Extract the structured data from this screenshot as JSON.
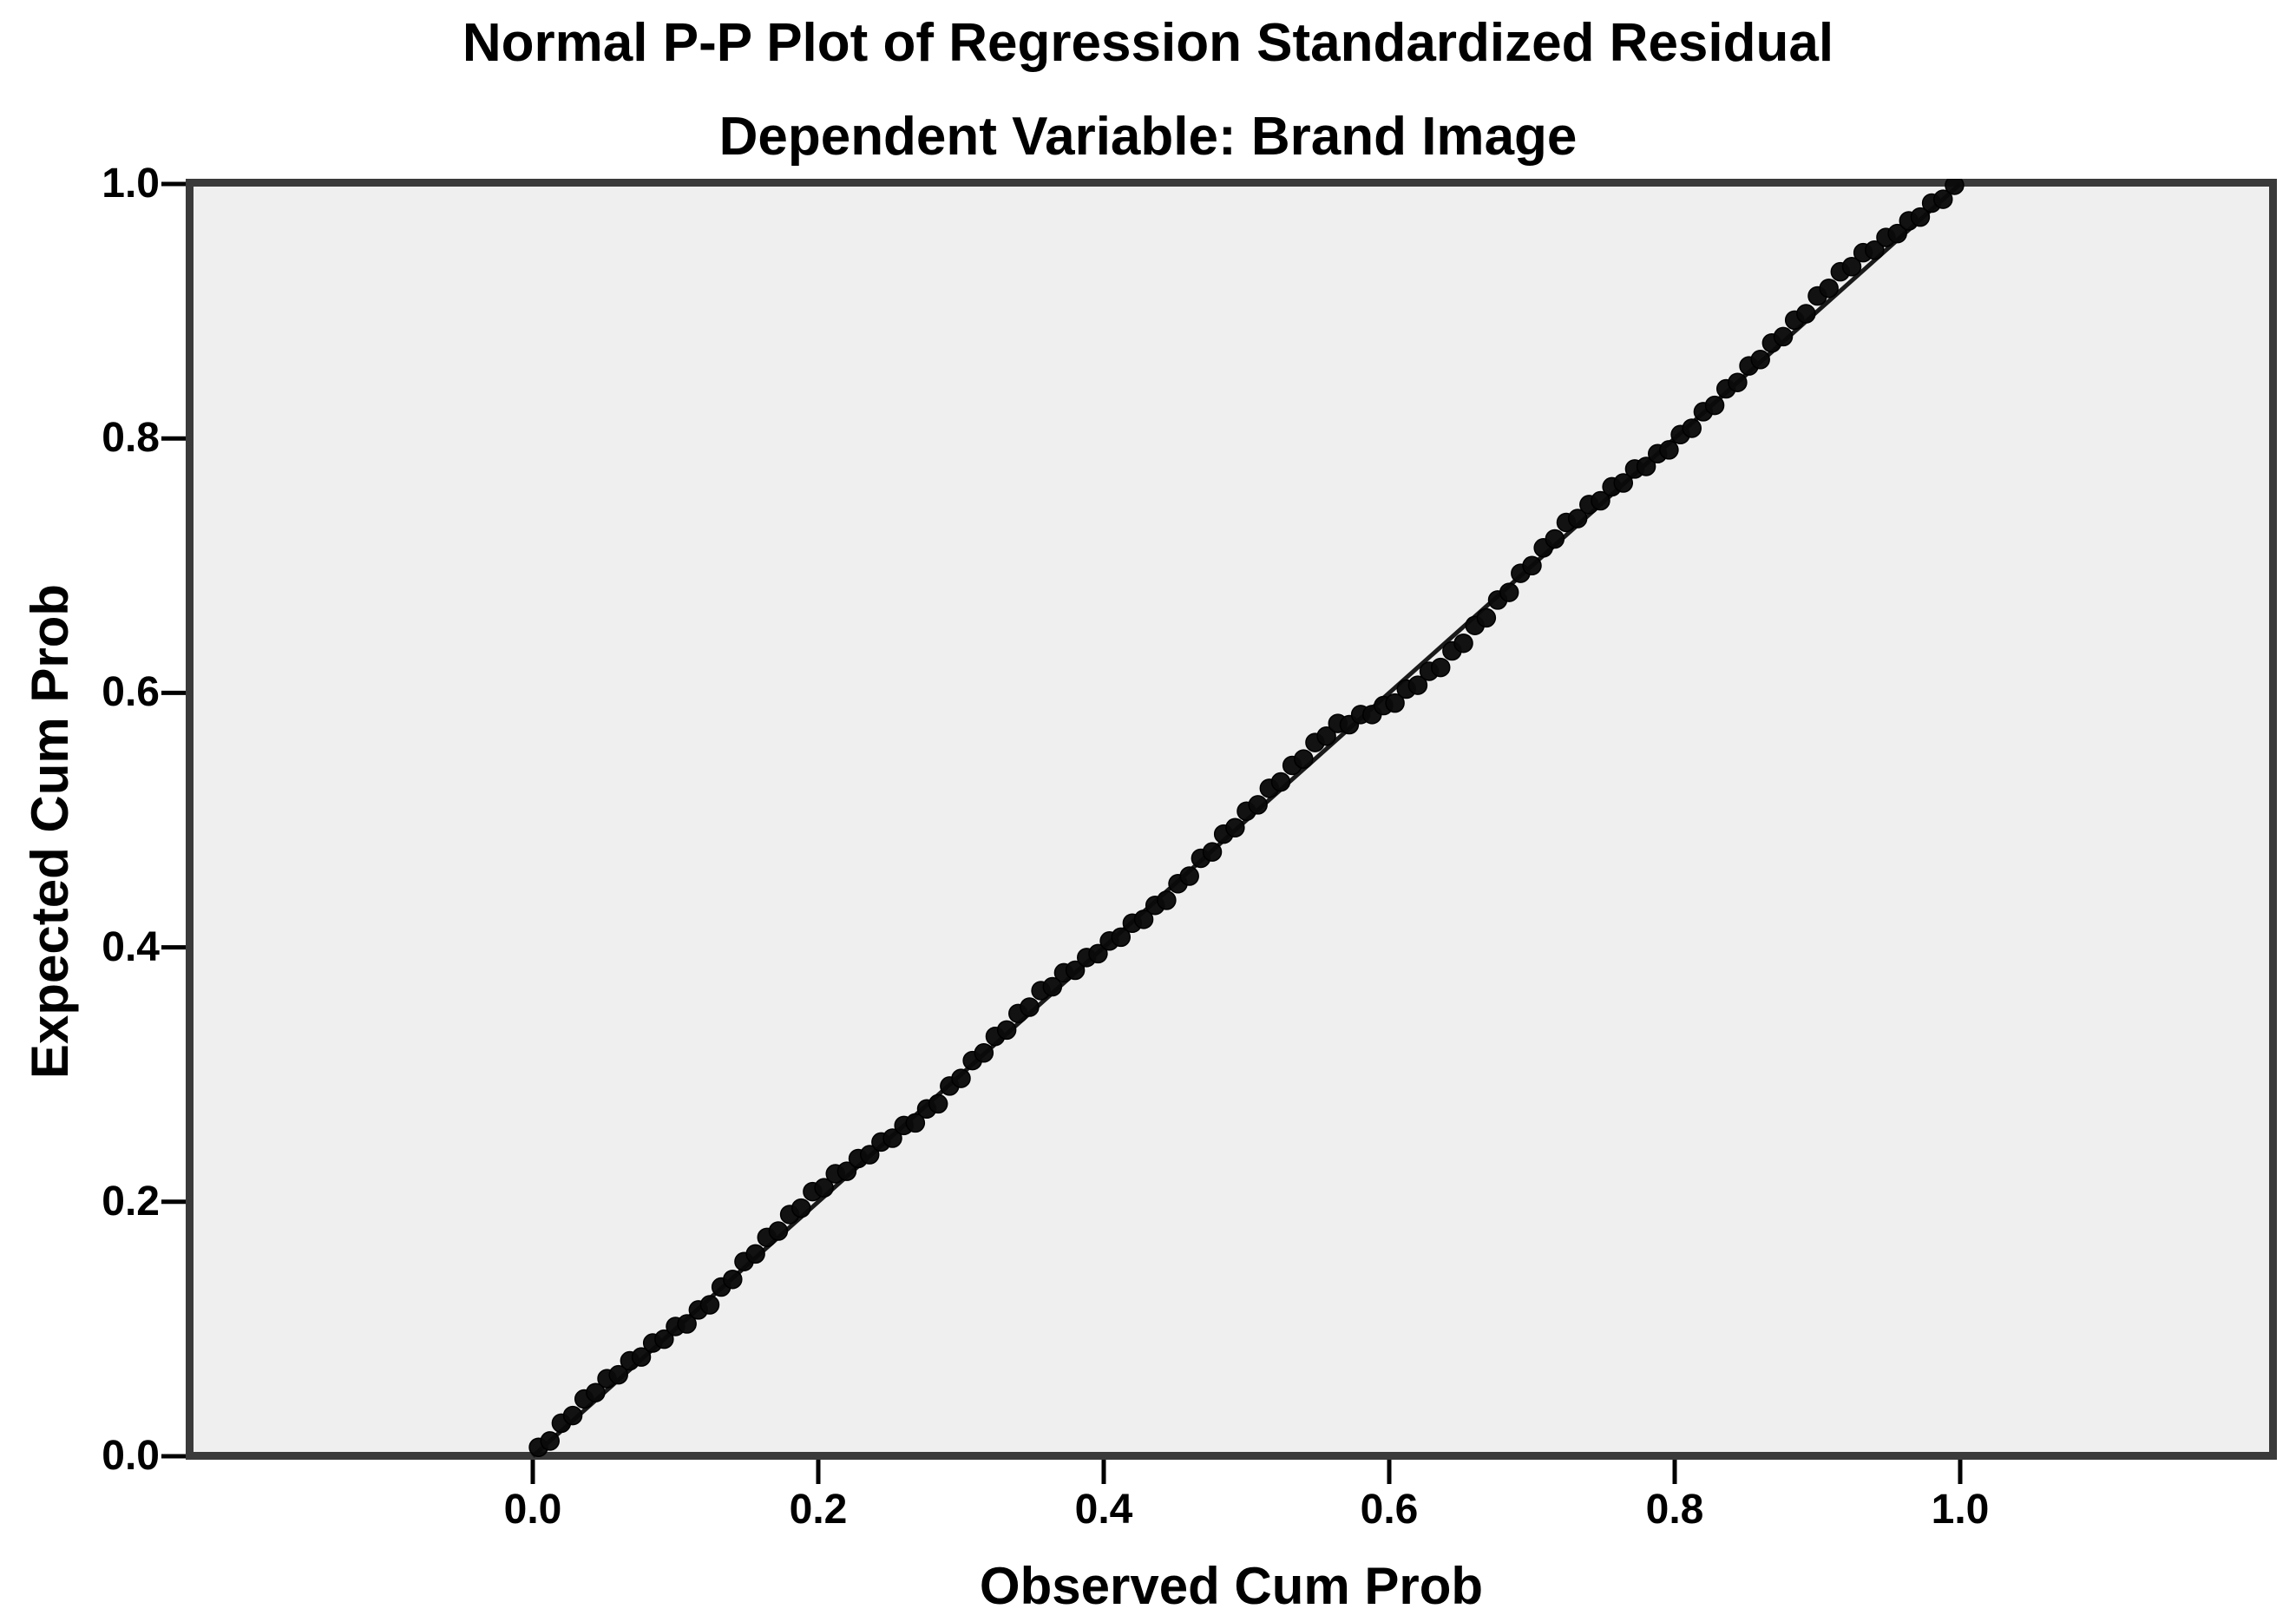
{
  "chart_data": {
    "type": "scatter",
    "title": "Normal P-P Plot of Regression Standardized Residual",
    "subtitle": "Dependent Variable: Brand Image",
    "xlabel": "Observed Cum Prob",
    "ylabel": "Expected Cum Prob",
    "xlim": [
      -0.24,
      1.22
    ],
    "ylim": [
      0.0,
      1.0
    ],
    "grid": false,
    "legend": null,
    "x_ticks": [
      0.0,
      0.2,
      0.4,
      0.6,
      0.8,
      1.0
    ],
    "y_ticks": [
      0.0,
      0.2,
      0.4,
      0.6,
      0.8,
      1.0
    ],
    "x_tick_labels": [
      "0.0",
      "0.2",
      "0.4",
      "0.6",
      "0.8",
      "1.0"
    ],
    "y_tick_labels": [
      "0.0",
      "0.2",
      "0.4",
      "0.6",
      "0.8",
      "1.0"
    ],
    "reference_line": {
      "from": [
        0,
        0
      ],
      "to": [
        1,
        1
      ]
    },
    "colors": {
      "panel_background": "#efefef",
      "frame": "#3a3a3a",
      "marker": "#0a0a0a",
      "reference_line": "#1a1a1a",
      "tick": "#000000",
      "text": "#000000"
    },
    "series_name": "observed_vs_expected_cum_prob",
    "points": [
      [
        0.004,
        0.007
      ],
      [
        0.012,
        0.012
      ],
      [
        0.02,
        0.026
      ],
      [
        0.028,
        0.032
      ],
      [
        0.036,
        0.045
      ],
      [
        0.044,
        0.05
      ],
      [
        0.052,
        0.061
      ],
      [
        0.06,
        0.064
      ],
      [
        0.068,
        0.075
      ],
      [
        0.076,
        0.078
      ],
      [
        0.084,
        0.089
      ],
      [
        0.092,
        0.092
      ],
      [
        0.1,
        0.102
      ],
      [
        0.108,
        0.104
      ],
      [
        0.116,
        0.115
      ],
      [
        0.124,
        0.119
      ],
      [
        0.132,
        0.133
      ],
      [
        0.14,
        0.139
      ],
      [
        0.148,
        0.153
      ],
      [
        0.156,
        0.159
      ],
      [
        0.164,
        0.172
      ],
      [
        0.172,
        0.177
      ],
      [
        0.18,
        0.19
      ],
      [
        0.188,
        0.195
      ],
      [
        0.196,
        0.208
      ],
      [
        0.204,
        0.211
      ],
      [
        0.212,
        0.222
      ],
      [
        0.22,
        0.224
      ],
      [
        0.228,
        0.234
      ],
      [
        0.236,
        0.237
      ],
      [
        0.244,
        0.247
      ],
      [
        0.252,
        0.25
      ],
      [
        0.26,
        0.26
      ],
      [
        0.268,
        0.262
      ],
      [
        0.276,
        0.273
      ],
      [
        0.284,
        0.277
      ],
      [
        0.292,
        0.291
      ],
      [
        0.3,
        0.297
      ],
      [
        0.308,
        0.311
      ],
      [
        0.316,
        0.317
      ],
      [
        0.324,
        0.33
      ],
      [
        0.332,
        0.335
      ],
      [
        0.34,
        0.348
      ],
      [
        0.348,
        0.353
      ],
      [
        0.356,
        0.366
      ],
      [
        0.364,
        0.369
      ],
      [
        0.372,
        0.38
      ],
      [
        0.38,
        0.382
      ],
      [
        0.388,
        0.392
      ],
      [
        0.396,
        0.395
      ],
      [
        0.404,
        0.405
      ],
      [
        0.412,
        0.408
      ],
      [
        0.42,
        0.419
      ],
      [
        0.428,
        0.422
      ],
      [
        0.436,
        0.433
      ],
      [
        0.444,
        0.437
      ],
      [
        0.452,
        0.45
      ],
      [
        0.46,
        0.456
      ],
      [
        0.468,
        0.47
      ],
      [
        0.476,
        0.475
      ],
      [
        0.484,
        0.489
      ],
      [
        0.492,
        0.494
      ],
      [
        0.5,
        0.507
      ],
      [
        0.508,
        0.512
      ],
      [
        0.516,
        0.525
      ],
      [
        0.524,
        0.53
      ],
      [
        0.532,
        0.543
      ],
      [
        0.54,
        0.548
      ],
      [
        0.548,
        0.561
      ],
      [
        0.556,
        0.566
      ],
      [
        0.564,
        0.576
      ],
      [
        0.572,
        0.575
      ],
      [
        0.58,
        0.583
      ],
      [
        0.588,
        0.583
      ],
      [
        0.596,
        0.59
      ],
      [
        0.604,
        0.592
      ],
      [
        0.612,
        0.603
      ],
      [
        0.62,
        0.606
      ],
      [
        0.628,
        0.617
      ],
      [
        0.636,
        0.62
      ],
      [
        0.644,
        0.633
      ],
      [
        0.652,
        0.639
      ],
      [
        0.66,
        0.653
      ],
      [
        0.668,
        0.659
      ],
      [
        0.676,
        0.673
      ],
      [
        0.684,
        0.679
      ],
      [
        0.692,
        0.694
      ],
      [
        0.7,
        0.7
      ],
      [
        0.708,
        0.714
      ],
      [
        0.716,
        0.721
      ],
      [
        0.724,
        0.734
      ],
      [
        0.732,
        0.737
      ],
      [
        0.74,
        0.748
      ],
      [
        0.748,
        0.751
      ],
      [
        0.756,
        0.762
      ],
      [
        0.764,
        0.765
      ],
      [
        0.772,
        0.776
      ],
      [
        0.78,
        0.778
      ],
      [
        0.788,
        0.788
      ],
      [
        0.796,
        0.791
      ],
      [
        0.804,
        0.803
      ],
      [
        0.812,
        0.808
      ],
      [
        0.82,
        0.821
      ],
      [
        0.828,
        0.826
      ],
      [
        0.836,
        0.839
      ],
      [
        0.844,
        0.844
      ],
      [
        0.852,
        0.857
      ],
      [
        0.86,
        0.862
      ],
      [
        0.868,
        0.875
      ],
      [
        0.876,
        0.88
      ],
      [
        0.884,
        0.893
      ],
      [
        0.892,
        0.898
      ],
      [
        0.9,
        0.912
      ],
      [
        0.908,
        0.918
      ],
      [
        0.916,
        0.931
      ],
      [
        0.924,
        0.935
      ],
      [
        0.932,
        0.946
      ],
      [
        0.94,
        0.948
      ],
      [
        0.948,
        0.958
      ],
      [
        0.956,
        0.961
      ],
      [
        0.964,
        0.971
      ],
      [
        0.972,
        0.974
      ],
      [
        0.98,
        0.985
      ],
      [
        0.988,
        0.988
      ],
      [
        0.996,
        0.999
      ]
    ]
  }
}
